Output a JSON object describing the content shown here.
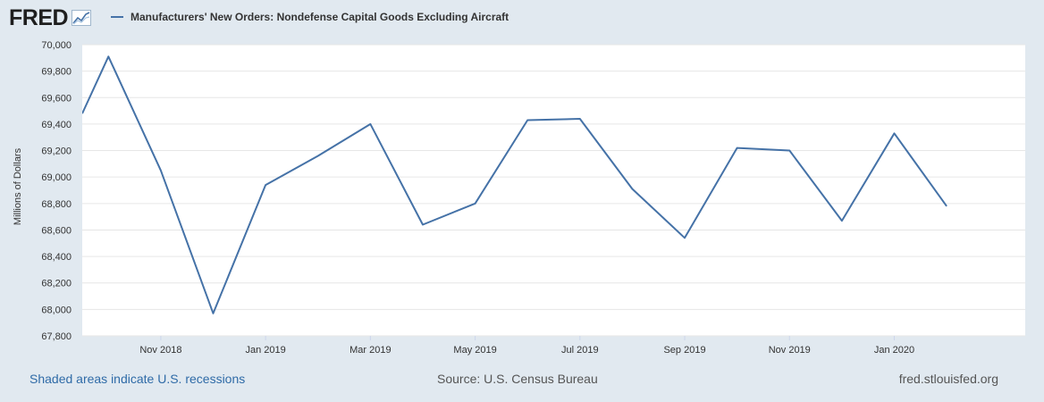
{
  "header": {
    "logo_text": "FRED",
    "logo_icon": "fred-graph-icon"
  },
  "chart_data": {
    "type": "line",
    "title": "Manufacturers' New Orders: Nondefense Capital Goods Excluding Aircraft",
    "ylabel": "Millions of Dollars",
    "xlabel": "",
    "ylim": [
      67800,
      70000
    ],
    "yticks": [
      67800,
      68000,
      68200,
      68400,
      68600,
      68800,
      69000,
      69200,
      69400,
      69600,
      69800,
      70000
    ],
    "ytick_labels": [
      "67,800",
      "68,000",
      "68,200",
      "68,400",
      "68,600",
      "68,800",
      "69,000",
      "69,200",
      "69,400",
      "69,600",
      "69,800",
      "70,000"
    ],
    "x_start_month_index": -0.5,
    "x_end_month_index": 17.5,
    "xticks": [
      {
        "month_index": 1,
        "label": "Nov 2018"
      },
      {
        "month_index": 3,
        "label": "Jan 2019"
      },
      {
        "month_index": 5,
        "label": "Mar 2019"
      },
      {
        "month_index": 7,
        "label": "May 2019"
      },
      {
        "month_index": 9,
        "label": "Jul 2019"
      },
      {
        "month_index": 11,
        "label": "Sep 2019"
      },
      {
        "month_index": 13,
        "label": "Nov 2019"
      },
      {
        "month_index": 15,
        "label": "Jan 2020"
      }
    ],
    "series": [
      {
        "name": "Manufacturers' New Orders: Nondefense Capital Goods Excluding Aircraft",
        "color": "#4572a7",
        "points": [
          {
            "month_index": -0.5,
            "date": "2018-08 (partial)",
            "value": 69480
          },
          {
            "month_index": 0,
            "date": "2018-10",
            "value": 69910
          },
          {
            "month_index": 1,
            "date": "2018-11",
            "value": 69050
          },
          {
            "month_index": 2,
            "date": "2018-12",
            "value": 67970
          },
          {
            "month_index": 3,
            "date": "2019-01",
            "value": 68940
          },
          {
            "month_index": 4,
            "date": "2019-02",
            "value": 69160
          },
          {
            "month_index": 5,
            "date": "2019-03",
            "value": 69400
          },
          {
            "month_index": 6,
            "date": "2019-04",
            "value": 68640
          },
          {
            "month_index": 7,
            "date": "2019-05",
            "value": 68800
          },
          {
            "month_index": 8,
            "date": "2019-06",
            "value": 69430
          },
          {
            "month_index": 9,
            "date": "2019-07",
            "value": 69440
          },
          {
            "month_index": 10,
            "date": "2019-08",
            "value": 68910
          },
          {
            "month_index": 11,
            "date": "2019-09",
            "value": 68540
          },
          {
            "month_index": 12,
            "date": "2019-10",
            "value": 69220
          },
          {
            "month_index": 13,
            "date": "2019-11",
            "value": 69200
          },
          {
            "month_index": 14,
            "date": "2019-12",
            "value": 68670
          },
          {
            "month_index": 15,
            "date": "2020-01",
            "value": 69330
          },
          {
            "month_index": 16,
            "date": "2020-02",
            "value": 68780
          }
        ]
      }
    ],
    "grid": true,
    "legend_position": "top-left"
  },
  "footer": {
    "recession_note": "Shaded areas indicate U.S. recessions",
    "source": "Source: U.S. Census Bureau",
    "url": "fred.stlouisfed.org"
  },
  "colors": {
    "background": "#e1e9f0",
    "plot_background": "#ffffff",
    "series_line": "#4572a7",
    "grid": "#e6e6e6",
    "link": "#2f6ba7"
  }
}
